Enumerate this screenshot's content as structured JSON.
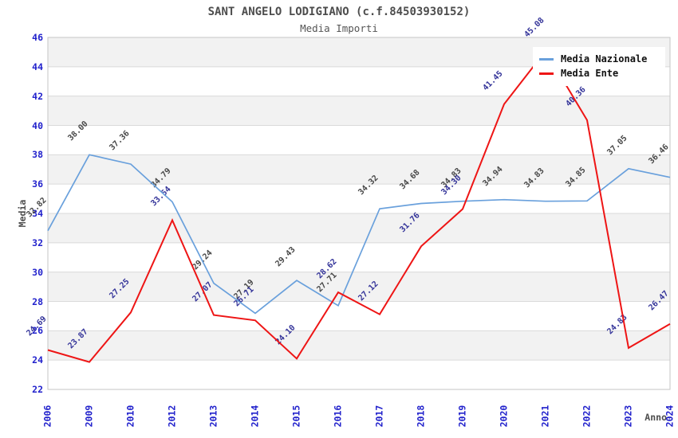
{
  "header": {
    "title": "SANT ANGELO LODIGIANO (c.f.84503930152)",
    "subtitle": "Media Importi"
  },
  "axes": {
    "y_title": "Media",
    "x_title": "Anno",
    "tick_color": "#2222cc"
  },
  "chart_data": {
    "type": "line",
    "title": "SANT ANGELO LODIGIANO (c.f.84503930152)",
    "subtitle": "Media Importi",
    "xlabel": "Anno",
    "ylabel": "Media",
    "categories": [
      "2006",
      "2009",
      "2010",
      "2012",
      "2013",
      "2014",
      "2015",
      "2016",
      "2017",
      "2018",
      "2019",
      "2020",
      "2021",
      "2022",
      "2023",
      "2024"
    ],
    "series": [
      {
        "name": "Media Nazionale",
        "color": "#69a0dc",
        "label_color": "#474747",
        "values": [
          32.82,
          38.0,
          37.36,
          34.79,
          29.24,
          27.19,
          29.43,
          27.71,
          34.32,
          34.68,
          34.83,
          34.94,
          34.83,
          34.85,
          37.05,
          36.46
        ]
      },
      {
        "name": "Media Ente",
        "color": "#ee1515",
        "label_color": "#333399",
        "values": [
          24.69,
          23.87,
          27.25,
          33.54,
          27.07,
          26.71,
          24.1,
          28.62,
          27.12,
          31.76,
          34.3,
          41.45,
          45.08,
          40.36,
          24.83,
          26.47
        ]
      }
    ],
    "ylim": [
      22,
      46
    ],
    "yticks": [
      22,
      24,
      26,
      28,
      30,
      32,
      34,
      36,
      38,
      40,
      42,
      44,
      46
    ],
    "grid": "horizontal, alternating shaded bands",
    "band_color": "#f2f2f2",
    "grid_color": "#dadada",
    "plot_border_color": "#c6c6c6",
    "legend_position": "top-right"
  }
}
